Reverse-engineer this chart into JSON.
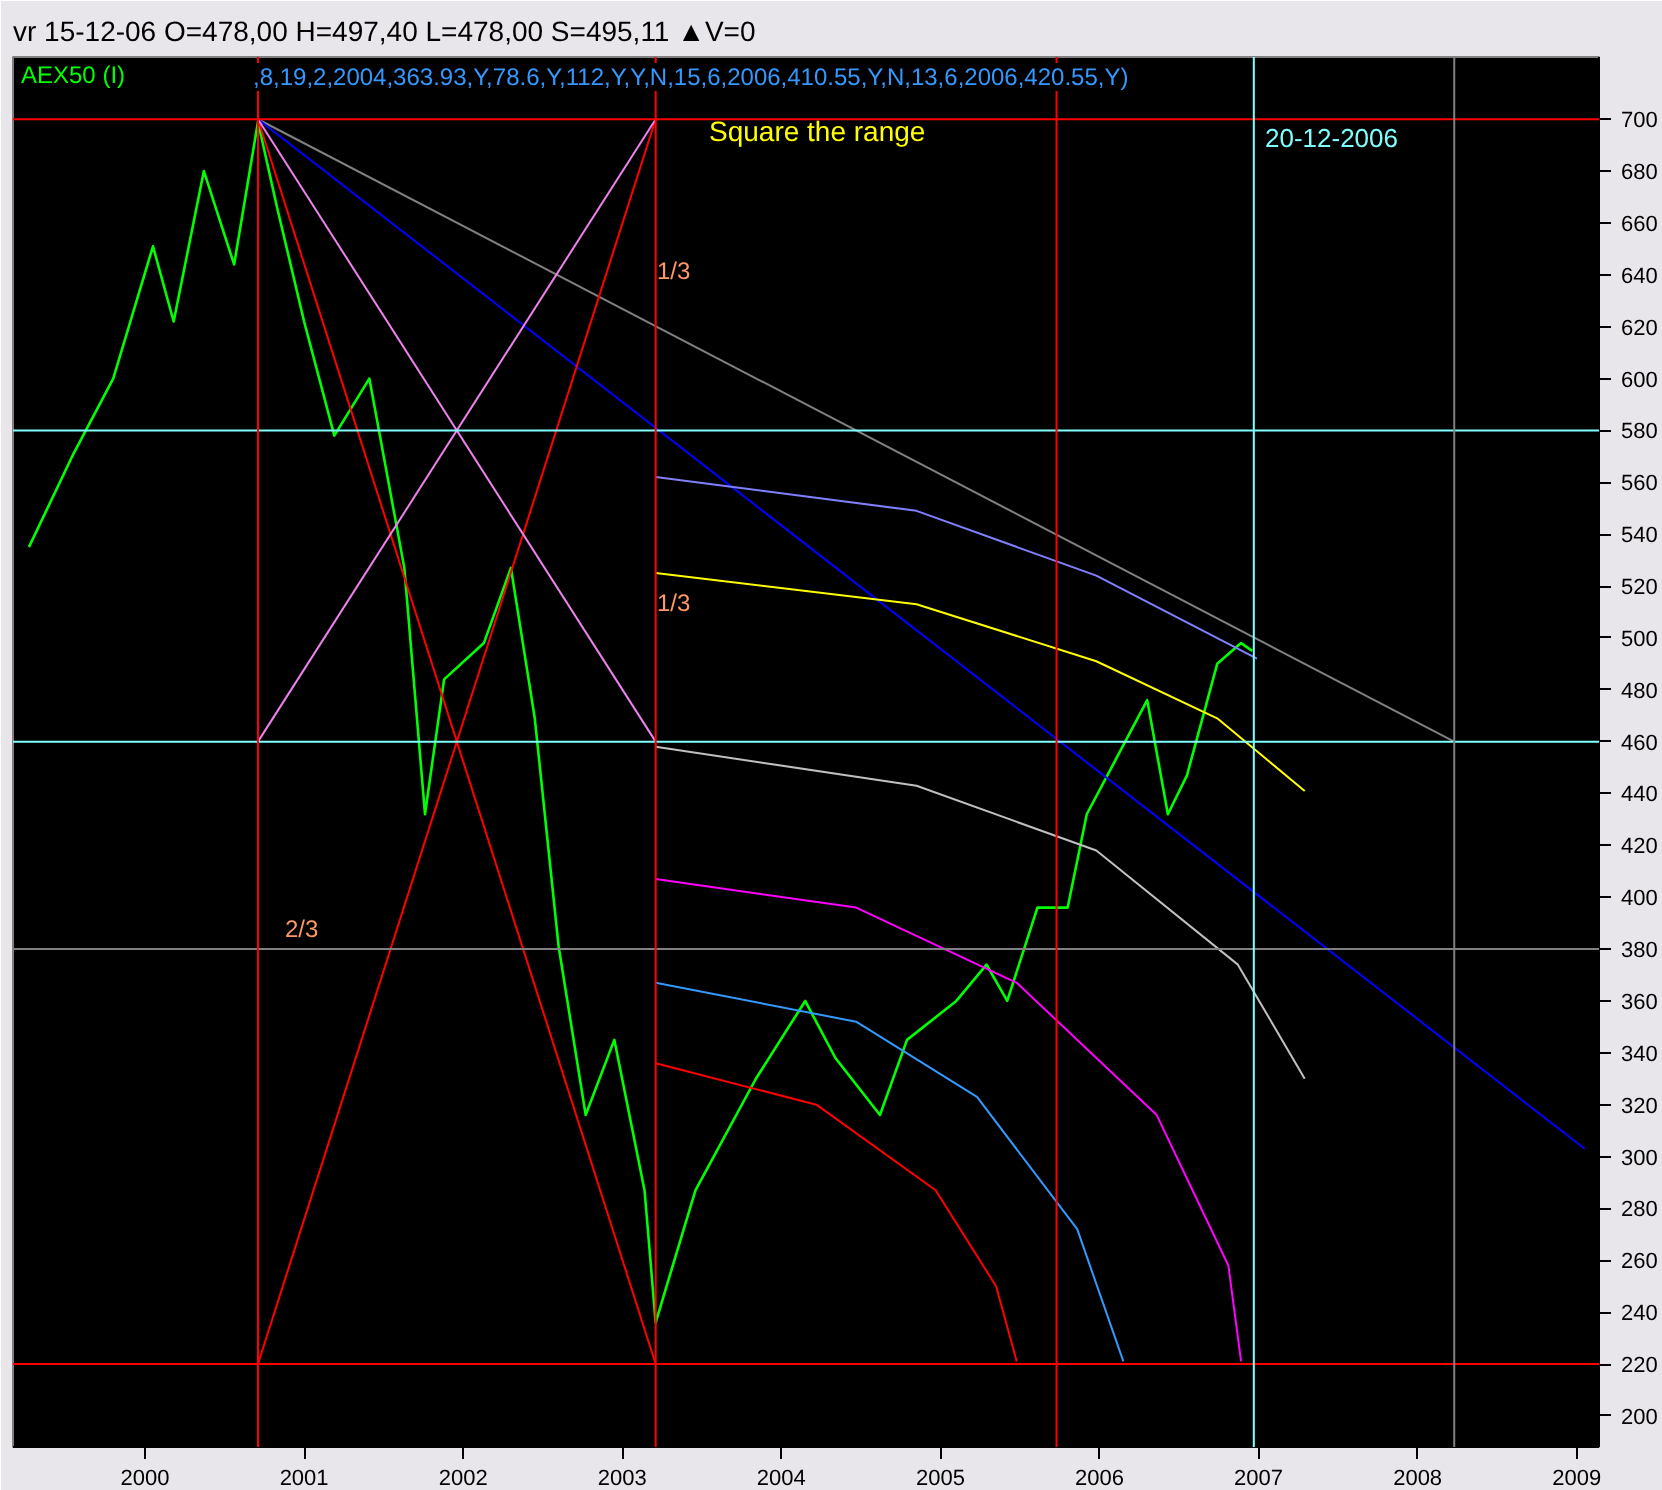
{
  "chart_data": {
    "type": "line",
    "annotations": [
      "vr 15-12-06  O=478,00  H=497,40  L=478,00  S=495,11  ▲V=0",
      "AEX50 (I)",
      ",8,19,2,2004,363.93,Y,78.6,Y,112,Y,Y,N,15,6,2006,410.55,Y,N,13,6,2006,420.55,Y)",
      "Square the range",
      "1/3",
      "1/3",
      "2/3",
      "20-12-2006"
    ],
    "series": [
      {
        "color": "#00ff00",
        "x": [
          1999.27,
          1999.55,
          1999.8,
          2000.05,
          2000.18,
          2000.37,
          2000.56,
          2000.71,
          2000.83,
          2001.0,
          2001.19,
          2001.41,
          2001.63,
          2001.76,
          2001.88,
          2002.13,
          2002.3,
          2002.45,
          2002.6,
          2002.77,
          2002.95,
          2003.14,
          2003.21,
          2003.46,
          2003.84,
          2004.15,
          2004.34,
          2004.62,
          2004.79,
          2005.1,
          2005.29,
          2005.42,
          2005.61,
          2005.8,
          2005.92,
          2006.11,
          2006.3,
          2006.43,
          2006.55,
          2006.74,
          2006.89,
          2006.96
        ],
        "values": [
          535,
          571,
          600,
          651,
          622,
          680,
          644,
          699,
          666,
          622,
          578,
          600,
          527,
          432,
          484,
          498,
          527,
          469,
          381,
          316,
          345,
          287,
          236,
          287,
          330,
          360,
          338,
          316,
          345,
          360,
          374,
          360,
          396,
          396,
          432,
          454,
          476,
          432,
          447,
          490,
          498,
          495
        ]
      },
      {
        "color": "#808080",
        "x": [
          2000.71,
          2008.23
        ],
        "values": [
          700,
          460
        ]
      },
      {
        "color": "#0000ff",
        "x": [
          2000.71,
          2009.05
        ],
        "values": [
          700,
          303
        ]
      },
      {
        "color": "#ff0000",
        "x": [
          2000.71,
          2003.21
        ],
        "values": [
          700,
          220
        ]
      },
      {
        "color": "#ff0000",
        "x": [
          2000.71,
          2003.21
        ],
        "values": [
          220,
          700
        ]
      },
      {
        "color": "#ee82ee",
        "x": [
          2000.71,
          2003.21
        ],
        "values": [
          700,
          460
        ]
      },
      {
        "color": "#ee82ee",
        "x": [
          2000.71,
          2003.21
        ],
        "values": [
          460,
          700
        ]
      },
      {
        "color": "#8080ff",
        "x": [
          2003.21,
          2004.85,
          2005.98,
          2006.99
        ],
        "values": [
          562,
          549,
          524,
          492
        ]
      },
      {
        "color": "#ffff00",
        "x": [
          2003.21,
          2004.85,
          2005.98,
          2006.74,
          2007.29
        ],
        "values": [
          525,
          513,
          491,
          469,
          441
        ]
      },
      {
        "color": "#c0c0c0",
        "x": [
          2003.21,
          2004.85,
          2005.98,
          2006.87,
          2007.29
        ],
        "values": [
          458,
          443,
          418,
          374,
          330
        ]
      },
      {
        "color": "#ff00ff",
        "x": [
          2003.21,
          2004.47,
          2005.48,
          2006.36,
          2006.81,
          2006.89
        ],
        "values": [
          407,
          396,
          367,
          316,
          258,
          221
        ]
      },
      {
        "color": "#3399ff",
        "x": [
          2003.21,
          2004.47,
          2005.23,
          2005.86,
          2006.15
        ],
        "values": [
          367,
          352,
          323,
          272,
          221
        ]
      },
      {
        "color": "#ff0000",
        "x": [
          2003.21,
          2004.22,
          2004.97,
          2005.35,
          2005.48
        ],
        "values": [
          336,
          320,
          287,
          250,
          221
        ]
      }
    ],
    "ref_lines": [
      {
        "axis": "y",
        "value": 700,
        "color": "#ff0000"
      },
      {
        "axis": "y",
        "value": 580,
        "color": "#80ffff"
      },
      {
        "axis": "y",
        "value": 460,
        "color": "#80ffff"
      },
      {
        "axis": "y",
        "value": 380,
        "color": "#808080"
      },
      {
        "axis": "y",
        "value": 220,
        "color": "#ff0000"
      },
      {
        "axis": "x",
        "value": 2000.71,
        "color": "#ff0000"
      },
      {
        "axis": "x",
        "value": 2003.21,
        "color": "#ff0000"
      },
      {
        "axis": "x",
        "value": 2005.73,
        "color": "#ff0000"
      },
      {
        "axis": "x",
        "value": 2006.97,
        "color": "#80ffff"
      },
      {
        "axis": "x",
        "value": 2008.23,
        "color": "#808080"
      }
    ],
    "xlim": [
      1999.17,
      2009.14
    ],
    "ylim": [
      188,
      724
    ],
    "xticks": [
      2000,
      2001,
      2002,
      2003,
      2004,
      2005,
      2006,
      2007,
      2008,
      2009
    ],
    "yticks": [
      200,
      220,
      240,
      260,
      280,
      300,
      320,
      340,
      360,
      380,
      400,
      420,
      440,
      460,
      480,
      500,
      520,
      540,
      560,
      580,
      600,
      620,
      640,
      660,
      680,
      700
    ],
    "grid": false,
    "line_style": "solid",
    "marker": "none"
  }
}
